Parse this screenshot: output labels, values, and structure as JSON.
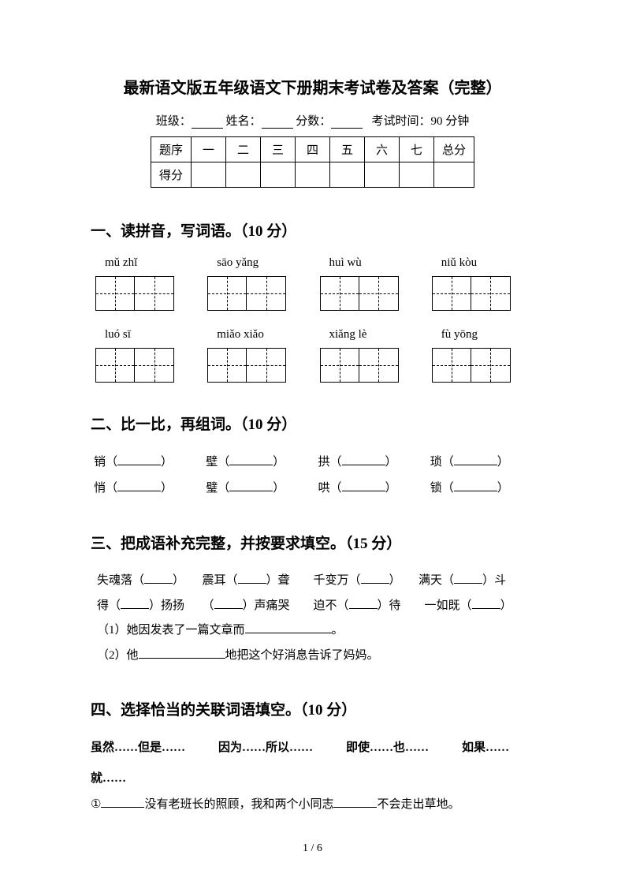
{
  "title": "最新语文版五年级语文下册期末考试卷及答案（完整）",
  "info": {
    "class_label": "班级：",
    "name_label": "姓名：",
    "score_label": "分数：",
    "time_label": "考试时间：90 分钟"
  },
  "score_table": {
    "headers": [
      "题序",
      "一",
      "二",
      "三",
      "四",
      "五",
      "六",
      "七",
      "总分"
    ],
    "row2_label": "得分"
  },
  "section1": {
    "heading": "一、读拼音，写词语。（10 分）",
    "row1": [
      "mǔ zhǐ",
      "sāo yǎng",
      "huì wù",
      "niǔ kòu"
    ],
    "row2": [
      "luó  sī",
      "miǎo xiǎo",
      "xiǎng lè",
      "fù yōng"
    ]
  },
  "section2": {
    "heading": "二、比一比，再组词。（10 分）",
    "pairs_row1": [
      "销",
      "壁",
      "拱",
      "琐"
    ],
    "pairs_row2": [
      "悄",
      "璧",
      "哄",
      "锁"
    ]
  },
  "section3": {
    "heading": "三、把成语补充完整，并按要求填空。（15 分）",
    "line1_parts": [
      "失魂落（",
      "）　　震耳（",
      "）聋　　千变万（",
      "）　　满天（",
      "）斗"
    ],
    "line2_parts": [
      "得（",
      "）扬扬　　（",
      "）声痛哭　　迫不（",
      "）待　　一如既（",
      "）"
    ],
    "q1": "（1）她因发表了一篇文章而",
    "q1_end": "。",
    "q2": "（2）他",
    "q2_end": "地把这个好消息告诉了妈妈。"
  },
  "section4": {
    "heading": "四、选择恰当的关联词语填空。（10 分）",
    "options": [
      "虽然……但是……",
      "因为……所以……",
      "即使……也……",
      "如果……"
    ],
    "option_cont": "就……",
    "q1_a": "①",
    "q1_b": "没有老班长的照顾，我和两个小同志",
    "q1_c": "不会走出草地。"
  },
  "page_number": "1 / 6"
}
